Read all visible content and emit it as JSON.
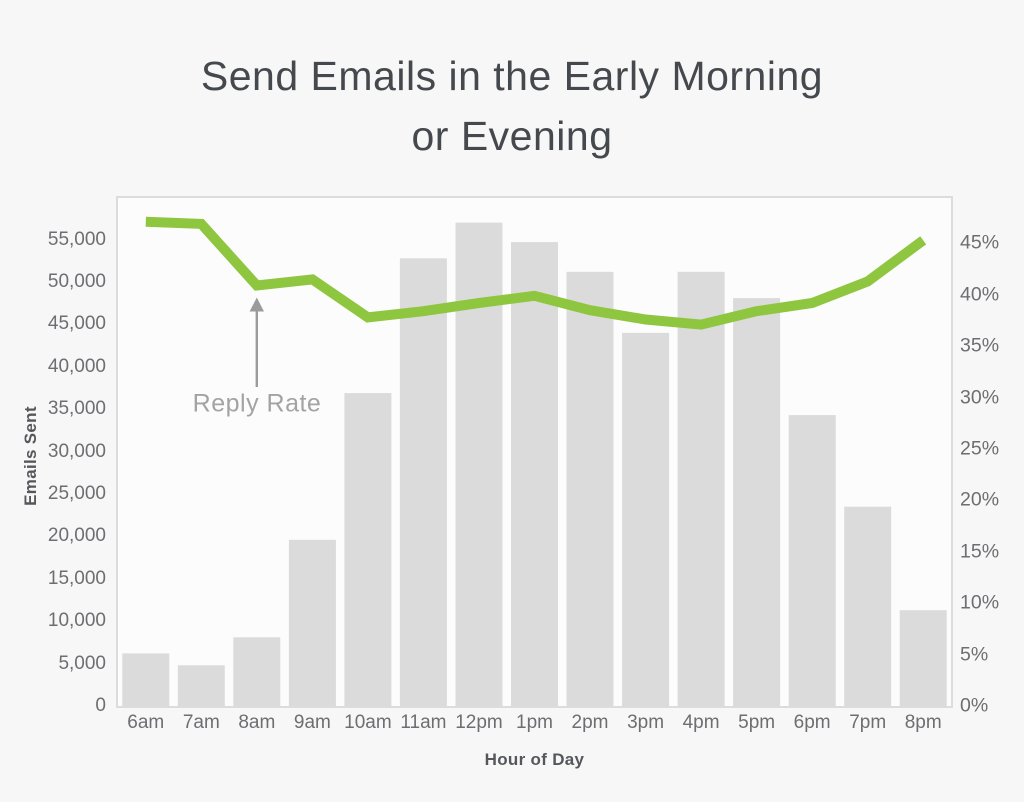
{
  "title": {
    "full": "Send Emails in the Early Morning or Evening",
    "line1": "Send Emails in the Early Morning",
    "line2": "or Evening"
  },
  "annotation": {
    "label": "Reply Rate",
    "points_to_category": "8am"
  },
  "chart_data": {
    "type": "bar+line",
    "title": "Send Emails in the Early Morning or Evening",
    "categories": [
      "6am",
      "7am",
      "8am",
      "9am",
      "10am",
      "11am",
      "12pm",
      "1pm",
      "2pm",
      "3pm",
      "4pm",
      "5pm",
      "6pm",
      "7pm",
      "8pm"
    ],
    "series": [
      {
        "name": "Emails Sent",
        "type": "bar",
        "axis": "left",
        "color": "#dbdbdb",
        "values": [
          6200,
          4800,
          8100,
          19600,
          36900,
          52800,
          57000,
          54700,
          51200,
          44000,
          51200,
          48100,
          34300,
          23500,
          11300
        ]
      },
      {
        "name": "Reply Rate",
        "type": "line",
        "axis": "right",
        "color": "#8ec63f",
        "values": [
          47.1,
          46.9,
          40.9,
          41.5,
          37.8,
          38.4,
          39.2,
          39.9,
          38.5,
          37.6,
          37.1,
          38.4,
          39.2,
          41.3,
          45.3
        ]
      }
    ],
    "left_axis": {
      "title": "Emails Sent",
      "tick_labels": [
        "0",
        "5,000",
        "10,000",
        "15,000",
        "20,000",
        "25,000",
        "30,000",
        "35,000",
        "40,000",
        "45,000",
        "50,000",
        "55,000"
      ],
      "tick_values": [
        0,
        5000,
        10000,
        15000,
        20000,
        25000,
        30000,
        35000,
        40000,
        45000,
        50000,
        55000
      ],
      "range": [
        0,
        59900
      ]
    },
    "right_axis": {
      "title": "",
      "tick_labels": [
        "0%",
        "5%",
        "10%",
        "15%",
        "20%",
        "25%",
        "30%",
        "35%",
        "40%",
        "45%"
      ],
      "tick_values": [
        0,
        5,
        10,
        15,
        20,
        25,
        30,
        35,
        40,
        45
      ],
      "range": [
        0,
        49.4
      ]
    },
    "x_axis": {
      "title": "Hour of Day"
    },
    "grid": false,
    "legend_position": "none",
    "colors": {
      "background": "#f7f7f7",
      "plot_background": "#fcfcfc",
      "plot_border": "#dcdcdc",
      "bar": "#dbdbdb",
      "line": "#8ec63f",
      "title_text": "#45494e",
      "tick_text": "#6d6e71",
      "axis_title_text": "#55575b",
      "annotation_text": "#a3a3a5",
      "annotation_arrow": "#9b9b9d"
    }
  }
}
